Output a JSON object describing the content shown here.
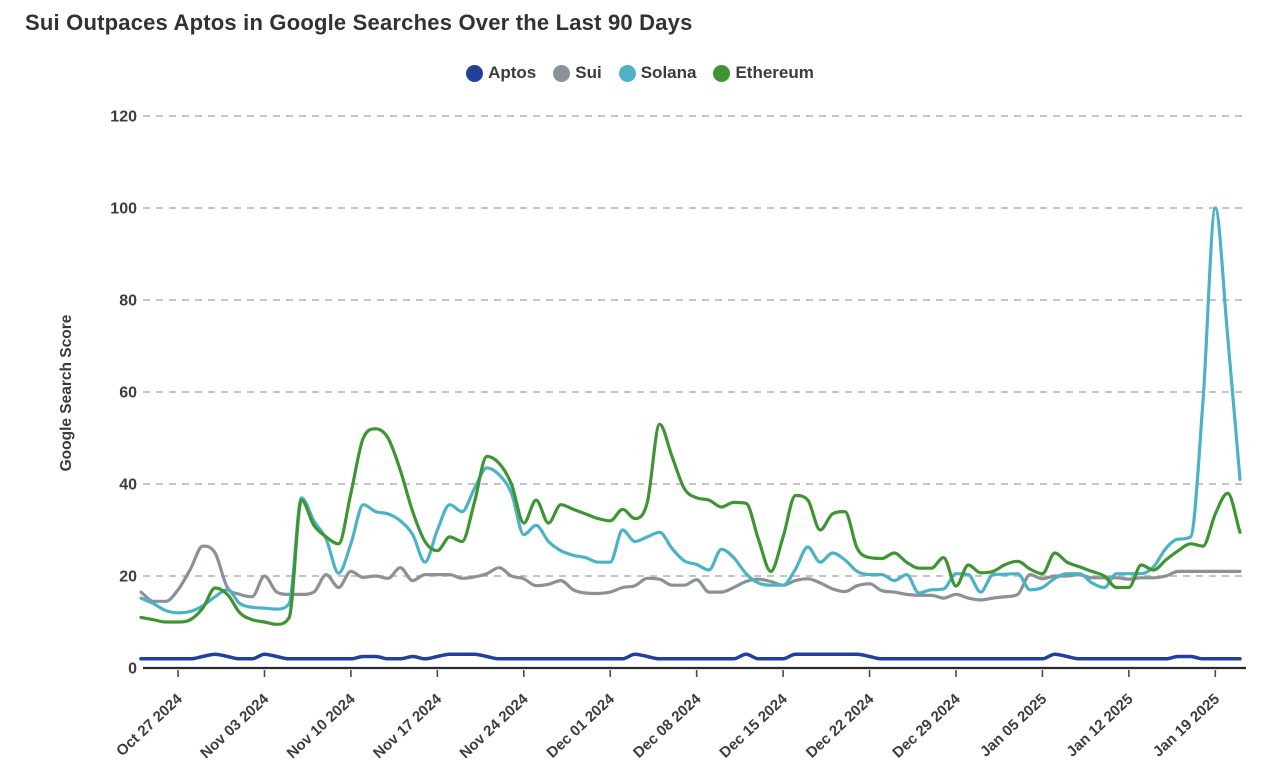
{
  "chart_data": {
    "type": "line",
    "title": "Sui Outpaces Aptos in Google Searches Over the Last 90 Days",
    "ylabel": "Google Search Score",
    "ylim": [
      0,
      120
    ],
    "yticks": [
      0,
      20,
      40,
      60,
      80,
      100,
      120
    ],
    "grid": "horizontal-dashed",
    "legend_position": "top-center",
    "x_range": {
      "start": "2024-10-24",
      "end": "2025-01-21",
      "interval": "daily",
      "points": 90
    },
    "x_ticks": [
      {
        "label": "Oct 27 2024",
        "day": 3
      },
      {
        "label": "Nov 03 2024",
        "day": 10
      },
      {
        "label": "Nov 10 2024",
        "day": 17
      },
      {
        "label": "Nov 17 2024",
        "day": 24
      },
      {
        "label": "Nov 24 2024",
        "day": 31
      },
      {
        "label": "Dec 01 2024",
        "day": 38
      },
      {
        "label": "Dec 08 2024",
        "day": 45
      },
      {
        "label": "Dec 15 2024",
        "day": 52
      },
      {
        "label": "Dec 22 2024",
        "day": 59
      },
      {
        "label": "Dec 29 2024",
        "day": 66
      },
      {
        "label": "Jan 05 2025",
        "day": 73
      },
      {
        "label": "Jan 12 2025",
        "day": 80
      },
      {
        "label": "Jan 19 2025",
        "day": 87
      }
    ],
    "series": [
      {
        "name": "Aptos",
        "color": "#21409a",
        "values": [
          2,
          2,
          2,
          2,
          2,
          2.5,
          3,
          2.5,
          2,
          2,
          3,
          2.5,
          2,
          2,
          2,
          2,
          2,
          2,
          2.5,
          2.5,
          2,
          2,
          2.5,
          2,
          2.5,
          3,
          3,
          3,
          2.5,
          2,
          2,
          2,
          2,
          2,
          2,
          2,
          2,
          2,
          2,
          2,
          3,
          2.5,
          2,
          2,
          2,
          2,
          2,
          2,
          2,
          3,
          2,
          2,
          2,
          3,
          3,
          3,
          3,
          3,
          3,
          2.5,
          2,
          2,
          2,
          2,
          2,
          2,
          2,
          2,
          2,
          2,
          2,
          2,
          2,
          2,
          3,
          2.5,
          2,
          2,
          2,
          2,
          2,
          2,
          2,
          2,
          2.5,
          2.5,
          2,
          2,
          2,
          2
        ]
      },
      {
        "name": "Sui",
        "color": "#8b9196",
        "values": [
          16.5,
          14.5,
          14.5,
          17,
          21.5,
          26.5,
          25,
          17.5,
          16,
          15.5,
          20,
          16.5,
          16,
          16,
          16.5,
          20.3,
          17.5,
          21,
          19.7,
          20,
          19.5,
          21.8,
          19,
          20.3,
          20.3,
          20.3,
          19.5,
          19.8,
          20.5,
          21.8,
          20,
          19.4,
          17.9,
          18.2,
          19,
          17,
          16.3,
          16.2,
          16.5,
          17.5,
          17.9,
          19.5,
          19.3,
          18,
          18,
          19.2,
          16.5,
          16.5,
          17.5,
          18.8,
          19.3,
          18.8,
          18,
          19,
          19.4,
          18.5,
          17.2,
          16.6,
          17.9,
          18.3,
          16.8,
          16.5,
          16,
          15.8,
          15.8,
          15.2,
          16,
          15.2,
          14.8,
          15.2,
          15.5,
          16,
          20.3,
          19.4,
          20,
          20,
          20.3,
          19.6,
          19.6,
          19.6,
          19.3,
          19.6,
          19.6,
          20,
          21,
          21,
          21,
          21,
          21,
          21
        ]
      },
      {
        "name": "Solana",
        "color": "#4cb3c4",
        "values": [
          15.2,
          14,
          12.5,
          12,
          12.3,
          13.5,
          15.5,
          17,
          14,
          13.2,
          13,
          12.8,
          14,
          37,
          32,
          28,
          20.6,
          27,
          35.5,
          34,
          33.5,
          32,
          29,
          23,
          30,
          35.5,
          34,
          39,
          43.5,
          42,
          38,
          29,
          31,
          27.5,
          25.5,
          24.5,
          24,
          23,
          23,
          30,
          27.5,
          28.5,
          29.5,
          26,
          23.3,
          22.5,
          21.3,
          25.8,
          24,
          20.5,
          18.5,
          18,
          18,
          21.5,
          26.3,
          23,
          25,
          23.5,
          21,
          20.3,
          20.3,
          19,
          20.3,
          16.3,
          17,
          17.2,
          20.5,
          20.3,
          16.5,
          20.3,
          20.4,
          20.5,
          17,
          17.5,
          19.5,
          20.5,
          20.5,
          18.5,
          17.5,
          20.5,
          20.5,
          20.5,
          22,
          26,
          28,
          28.5,
          58,
          100,
          72,
          41
        ]
      },
      {
        "name": "Ethereum",
        "color": "#3f9434",
        "values": [
          11,
          10.5,
          10,
          10,
          10.5,
          13,
          17.4,
          16,
          12,
          10.5,
          10,
          9.5,
          11,
          36.5,
          31,
          28.5,
          27,
          38,
          50,
          52,
          50,
          43,
          34,
          27.5,
          25.5,
          28.5,
          27.5,
          36,
          46,
          44.5,
          40,
          31.5,
          36.5,
          31.5,
          35.5,
          34.5,
          33.5,
          32.5,
          32,
          34.5,
          32.5,
          36,
          53,
          46,
          39,
          37,
          36.5,
          35,
          36,
          35.8,
          28,
          21,
          28.5,
          37.5,
          36.5,
          30,
          33.5,
          34,
          26,
          24,
          23.8,
          25,
          23,
          21.7,
          21.7,
          24,
          17.8,
          22.4,
          20.7,
          21,
          22.5,
          23.2,
          21.5,
          20.5,
          25,
          23,
          22,
          21,
          20,
          17.5,
          17.5,
          22.4,
          21.3,
          23.5,
          25.5,
          27,
          26.5,
          33.5,
          38,
          29.5
        ]
      }
    ],
    "style": {
      "grid_color": "#b1b1b1",
      "zero_line_color": "#2a2a2a",
      "axis_text_color": "#3d3d3d",
      "background": "#ffffff"
    }
  }
}
